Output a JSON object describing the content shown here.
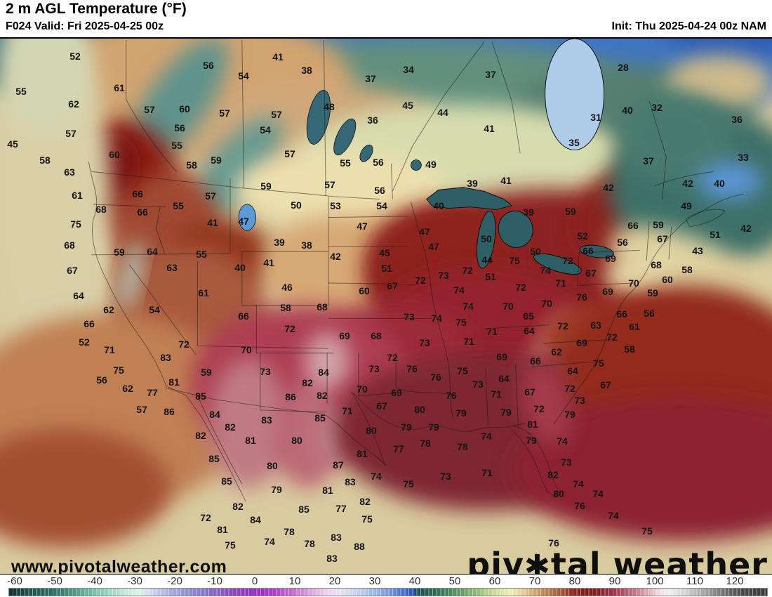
{
  "header": {
    "title": "2 m AGL Temperature (°F)",
    "valid": "F024 Valid: Fri 2025-04-25 00z",
    "init": "Init: Thu 2025-04-24 00z NAM"
  },
  "watermark": "www.pivotalweather.com",
  "logo": {
    "part1": "piv",
    "symbol": "✱",
    "part2": "tal weather"
  },
  "colorbar": {
    "unit": "°F",
    "ticks": [
      -60,
      -50,
      -40,
      -30,
      -20,
      -10,
      0,
      10,
      20,
      30,
      40,
      50,
      60,
      70,
      80,
      90,
      100,
      110,
      120
    ],
    "stops": [
      [
        -61.5,
        "#0d3134"
      ],
      [
        -56,
        "#1d5550"
      ],
      [
        -50,
        "#2f7468"
      ],
      [
        -45,
        "#4f9a87"
      ],
      [
        -40,
        "#79c3ad"
      ],
      [
        -36,
        "#a2d9c6"
      ],
      [
        -32,
        "#c6ead9"
      ],
      [
        -29,
        "#dcf2e8"
      ],
      [
        -26,
        "#cfd8ee"
      ],
      [
        -22,
        "#aeb2e0"
      ],
      [
        -18,
        "#9597d6"
      ],
      [
        -14,
        "#8b7ecd"
      ],
      [
        -10,
        "#8a62c4"
      ],
      [
        -6,
        "#8c49bb"
      ],
      [
        -2,
        "#9334bd"
      ],
      [
        2,
        "#a02cc4"
      ],
      [
        6,
        "#b24aca"
      ],
      [
        10,
        "#c873d2"
      ],
      [
        13,
        "#d795da"
      ],
      [
        16,
        "#e7bce8"
      ],
      [
        19,
        "#efd9f0"
      ],
      [
        22,
        "#e3e1f2"
      ],
      [
        26,
        "#c0cfec"
      ],
      [
        30,
        "#9ab7e4"
      ],
      [
        34,
        "#7095d9"
      ],
      [
        37,
        "#4a71cd"
      ],
      [
        39.5,
        "#2b52c0"
      ],
      [
        40.5,
        "#1b4f52"
      ],
      [
        44,
        "#266352"
      ],
      [
        48,
        "#40815c"
      ],
      [
        52,
        "#699f68"
      ],
      [
        56,
        "#97bf7a"
      ],
      [
        59,
        "#c0d48e"
      ],
      [
        62,
        "#e0e4a6"
      ],
      [
        64,
        "#f0ecb6"
      ],
      [
        66,
        "#ecd9a2"
      ],
      [
        69,
        "#d7b27c"
      ],
      [
        72,
        "#c28d58"
      ],
      [
        75,
        "#b06a40"
      ],
      [
        78,
        "#9c422a"
      ],
      [
        80,
        "#8c291d"
      ],
      [
        83,
        "#7d1b16"
      ],
      [
        86,
        "#831f27"
      ],
      [
        88,
        "#93283c"
      ],
      [
        91,
        "#a83f55"
      ],
      [
        94,
        "#bf647a"
      ],
      [
        97,
        "#d392a0"
      ],
      [
        100,
        "#e9c8cc"
      ],
      [
        102,
        "#f2e4e4"
      ],
      [
        104,
        "#f0eeee"
      ],
      [
        107,
        "#d9d9d9"
      ],
      [
        110,
        "#bdbdbd"
      ],
      [
        114,
        "#979797"
      ],
      [
        118,
        "#6b6b6b"
      ],
      [
        122,
        "#4a4a4a"
      ],
      [
        128,
        "#383838"
      ]
    ]
  },
  "map_labels": [
    [
      52,
      107,
      80
    ],
    [
      41,
      396,
      81
    ],
    [
      56,
      297,
      93
    ],
    [
      34,
      582,
      99
    ],
    [
      38,
      437,
      100
    ],
    [
      37,
      528,
      112
    ],
    [
      37,
      699,
      106
    ],
    [
      28,
      888,
      96
    ],
    [
      61,
      170,
      125
    ],
    [
      55,
      30,
      130
    ],
    [
      54,
      347,
      108
    ],
    [
      62,
      105,
      148
    ],
    [
      48,
      469,
      152
    ],
    [
      45,
      581,
      150
    ],
    [
      57,
      213,
      156
    ],
    [
      60,
      263,
      155
    ],
    [
      40,
      894,
      157
    ],
    [
      32,
      936,
      153
    ],
    [
      57,
      320,
      161
    ],
    [
      44,
      631,
      160
    ],
    [
      31,
      849,
      167
    ],
    [
      36,
      531,
      171
    ],
    [
      36,
      1050,
      170
    ],
    [
      57,
      394,
      163
    ],
    [
      41,
      697,
      183
    ],
    [
      54,
      378,
      185
    ],
    [
      56,
      256,
      182
    ],
    [
      57,
      101,
      190
    ],
    [
      45,
      18,
      205
    ],
    [
      35,
      818,
      203
    ],
    [
      55,
      252,
      207
    ],
    [
      60,
      163,
      220
    ],
    [
      57,
      413,
      219
    ],
    [
      59,
      308,
      228
    ],
    [
      37,
      924,
      229
    ],
    [
      33,
      1059,
      224
    ],
    [
      58,
      273,
      235
    ],
    [
      58,
      64,
      228
    ],
    [
      55,
      492,
      232
    ],
    [
      56,
      539,
      231
    ],
    [
      49,
      614,
      234
    ],
    [
      63,
      99,
      245
    ],
    [
      41,
      721,
      257
    ],
    [
      39,
      673,
      261
    ],
    [
      42,
      867,
      267
    ],
    [
      42,
      980,
      261
    ],
    [
      40,
      1025,
      261
    ],
    [
      57,
      470,
      263
    ],
    [
      59,
      379,
      265
    ],
    [
      56,
      541,
      271
    ],
    [
      66,
      196,
      276
    ],
    [
      61,
      110,
      278
    ],
    [
      57,
      300,
      279
    ],
    [
      50,
      422,
      292
    ],
    [
      53,
      478,
      293
    ],
    [
      54,
      544,
      293
    ],
    [
      40,
      625,
      293
    ],
    [
      55,
      254,
      293
    ],
    [
      49,
      978,
      293
    ],
    [
      68,
      144,
      298
    ],
    [
      66,
      203,
      302
    ],
    [
      59,
      813,
      301
    ],
    [
      39,
      753,
      302
    ],
    [
      75,
      108,
      319
    ],
    [
      41,
      303,
      317
    ],
    [
      47,
      347,
      315
    ],
    [
      47,
      516,
      322
    ],
    [
      66,
      902,
      321
    ],
    [
      59,
      938,
      320
    ],
    [
      42,
      1063,
      325
    ],
    [
      47,
      605,
      330
    ],
    [
      52,
      830,
      336
    ],
    [
      51,
      1019,
      334
    ],
    [
      50,
      693,
      340
    ],
    [
      67,
      944,
      340
    ],
    [
      39,
      398,
      345
    ],
    [
      56,
      887,
      345
    ],
    [
      38,
      437,
      349
    ],
    [
      68,
      99,
      349
    ],
    [
      47,
      618,
      351
    ],
    [
      66,
      838,
      357
    ],
    [
      43,
      994,
      357
    ],
    [
      59,
      170,
      359
    ],
    [
      64,
      217,
      358
    ],
    [
      45,
      548,
      360
    ],
    [
      55,
      287,
      362
    ],
    [
      42,
      478,
      365
    ],
    [
      69,
      870,
      368
    ],
    [
      50,
      763,
      358
    ],
    [
      44,
      694,
      370
    ],
    [
      75,
      733,
      371
    ],
    [
      41,
      383,
      374
    ],
    [
      72,
      809,
      371
    ],
    [
      67,
      103,
      385
    ],
    [
      63,
      245,
      381
    ],
    [
      40,
      342,
      381
    ],
    [
      51,
      551,
      382
    ],
    [
      72,
      666,
      385
    ],
    [
      73,
      632,
      392
    ],
    [
      51,
      699,
      394
    ],
    [
      68,
      935,
      377
    ],
    [
      58,
      979,
      384
    ],
    [
      74,
      777,
      385
    ],
    [
      67,
      842,
      389
    ],
    [
      46,
      409,
      409
    ],
    [
      72,
      599,
      399
    ],
    [
      67,
      559,
      407
    ],
    [
      60,
      951,
      398
    ],
    [
      71,
      799,
      403
    ],
    [
      70,
      903,
      403
    ],
    [
      72,
      742,
      409
    ],
    [
      74,
      654,
      413
    ],
    [
      60,
      519,
      414
    ],
    [
      64,
      112,
      421
    ],
    [
      61,
      290,
      417
    ],
    [
      59,
      930,
      417
    ],
    [
      69,
      866,
      415
    ],
    [
      76,
      829,
      423
    ],
    [
      70,
      779,
      432
    ],
    [
      58,
      407,
      438
    ],
    [
      68,
      459,
      437
    ],
    [
      74,
      667,
      436
    ],
    [
      70,
      724,
      436
    ],
    [
      62,
      155,
      441
    ],
    [
      54,
      220,
      441
    ],
    [
      66,
      886,
      447
    ],
    [
      56,
      925,
      446
    ],
    [
      65,
      753,
      450
    ],
    [
      66,
      347,
      450
    ],
    [
      73,
      583,
      451
    ],
    [
      74,
      622,
      453
    ],
    [
      66,
      127,
      461
    ],
    [
      63,
      849,
      463
    ],
    [
      72,
      802,
      464
    ],
    [
      61,
      904,
      465
    ],
    [
      72,
      413,
      468
    ],
    [
      75,
      657,
      459
    ],
    [
      64,
      754,
      471
    ],
    [
      69,
      491,
      478
    ],
    [
      68,
      536,
      478
    ],
    [
      71,
      701,
      472
    ],
    [
      72,
      872,
      480
    ],
    [
      52,
      120,
      487
    ],
    [
      73,
      605,
      488
    ],
    [
      71,
      668,
      486
    ],
    [
      69,
      829,
      488
    ],
    [
      72,
      262,
      490
    ],
    [
      71,
      156,
      498
    ],
    [
      70,
      351,
      498
    ],
    [
      58,
      897,
      497
    ],
    [
      62,
      793,
      501
    ],
    [
      72,
      559,
      509
    ],
    [
      69,
      715,
      508
    ],
    [
      83,
      236,
      509
    ],
    [
      66,
      763,
      514
    ],
    [
      75,
      853,
      517
    ],
    [
      73,
      533,
      525
    ],
    [
      76,
      587,
      525
    ],
    [
      84,
      461,
      530
    ],
    [
      73,
      378,
      529
    ],
    [
      75,
      169,
      527
    ],
    [
      59,
      294,
      530
    ],
    [
      76,
      621,
      537
    ],
    [
      75,
      659,
      528
    ],
    [
      64,
      816,
      528
    ],
    [
      82,
      438,
      545
    ],
    [
      64,
      718,
      539
    ],
    [
      73,
      681,
      547
    ],
    [
      56,
      145,
      541
    ],
    [
      81,
      248,
      544
    ],
    [
      70,
      516,
      554
    ],
    [
      82,
      459,
      563
    ],
    [
      69,
      565,
      559
    ],
    [
      86,
      414,
      565
    ],
    [
      76,
      643,
      563
    ],
    [
      71,
      707,
      561
    ],
    [
      62,
      182,
      553
    ],
    [
      77,
      217,
      559
    ],
    [
      85,
      286,
      564
    ],
    [
      67,
      755,
      558
    ],
    [
      72,
      812,
      553
    ],
    [
      67,
      863,
      548
    ],
    [
      73,
      826,
      570
    ],
    [
      57,
      202,
      583
    ],
    [
      86,
      241,
      586
    ],
    [
      84,
      306,
      590
    ],
    [
      83,
      380,
      598
    ],
    [
      85,
      456,
      595
    ],
    [
      71,
      495,
      585
    ],
    [
      67,
      544,
      578
    ],
    [
      80,
      598,
      583
    ],
    [
      79,
      657,
      588
    ],
    [
      79,
      721,
      587
    ],
    [
      72,
      768,
      582
    ],
    [
      79,
      812,
      590
    ],
    [
      81,
      759,
      604
    ],
    [
      82,
      328,
      608
    ],
    [
      80,
      529,
      613
    ],
    [
      79,
      579,
      608
    ],
    [
      79,
      618,
      608
    ],
    [
      82,
      286,
      620
    ],
    [
      81,
      357,
      627
    ],
    [
      80,
      423,
      627
    ],
    [
      74,
      693,
      621
    ],
    [
      79,
      757,
      627
    ],
    [
      74,
      801,
      628
    ],
    [
      78,
      606,
      631
    ],
    [
      78,
      659,
      636
    ],
    [
      77,
      568,
      639
    ],
    [
      81,
      516,
      646
    ],
    [
      85,
      305,
      653
    ],
    [
      80,
      388,
      663
    ],
    [
      87,
      482,
      662
    ],
    [
      73,
      807,
      658
    ],
    [
      82,
      788,
      676
    ],
    [
      73,
      635,
      678
    ],
    [
      71,
      694,
      673
    ],
    [
      74,
      536,
      678
    ],
    [
      85,
      323,
      685
    ],
    [
      74,
      824,
      689
    ],
    [
      79,
      394,
      697
    ],
    [
      83,
      499,
      686
    ],
    [
      81,
      467,
      698
    ],
    [
      75,
      582,
      689
    ],
    [
      80,
      796,
      703
    ],
    [
      74,
      852,
      703
    ],
    [
      82,
      520,
      714
    ],
    [
      85,
      433,
      725
    ],
    [
      77,
      486,
      724
    ],
    [
      82,
      339,
      721
    ],
    [
      76,
      826,
      720
    ],
    [
      72,
      293,
      737
    ],
    [
      84,
      364,
      740
    ],
    [
      75,
      523,
      739
    ],
    [
      74,
      874,
      734
    ],
    [
      81,
      317,
      754
    ],
    [
      78,
      412,
      757
    ],
    [
      75,
      922,
      756
    ],
    [
      74,
      384,
      771
    ],
    [
      78,
      441,
      774
    ],
    [
      83,
      479,
      765
    ],
    [
      88,
      512,
      778
    ],
    [
      75,
      328,
      776
    ],
    [
      76,
      789,
      773
    ],
    [
      83,
      473,
      795
    ]
  ],
  "colors": {
    "label": "#141414",
    "border": "#1a1a1a",
    "lake": "#2e5f66",
    "hudson_bay": "#aecbe9"
  }
}
